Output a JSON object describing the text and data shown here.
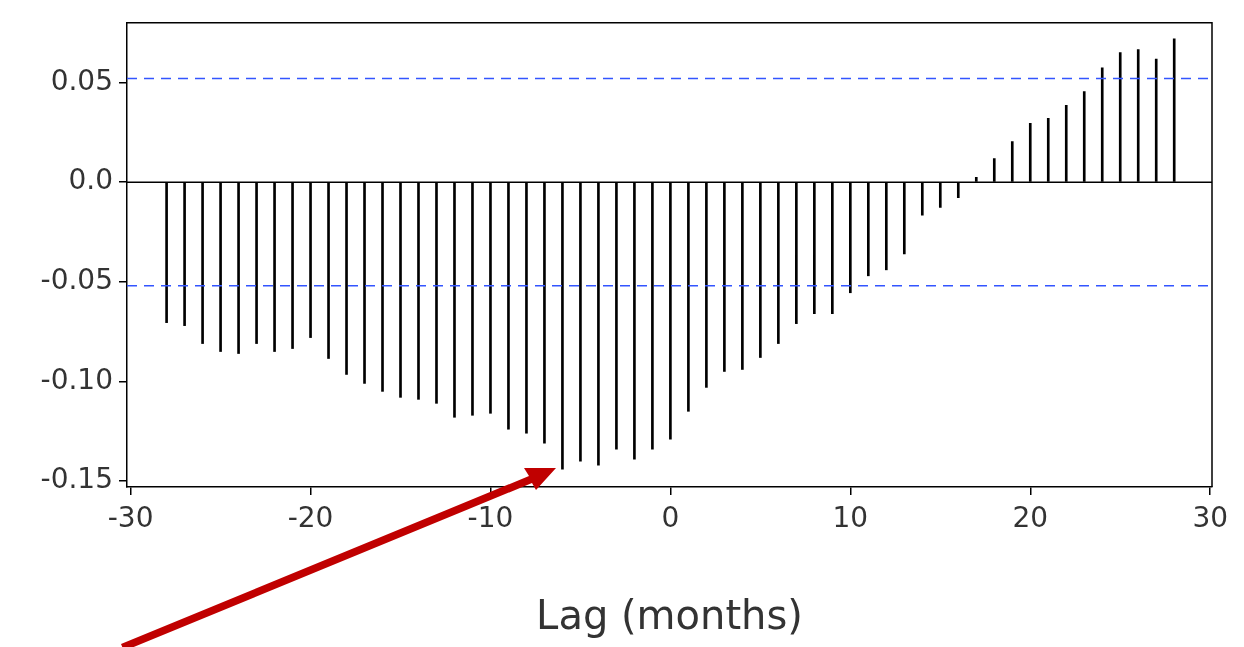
{
  "chart_data": {
    "type": "bar",
    "xlabel": "Lag (months)",
    "x": [
      -28,
      -27,
      -26,
      -25,
      -24,
      -23,
      -22,
      -21,
      -20,
      -19,
      -18,
      -17,
      -16,
      -15,
      -14,
      -13,
      -12,
      -11,
      -10,
      -9,
      -8,
      -7,
      -6,
      -5,
      -4,
      -3,
      -2,
      -1,
      0,
      1,
      2,
      3,
      4,
      5,
      6,
      7,
      8,
      9,
      10,
      11,
      12,
      13,
      14,
      15,
      16,
      17,
      18,
      19,
      20,
      21,
      22,
      23,
      24,
      25,
      26,
      27,
      28
    ],
    "values": [
      -0.0705,
      -0.072,
      -0.081,
      -0.085,
      -0.086,
      -0.081,
      -0.085,
      -0.0835,
      -0.078,
      -0.0885,
      -0.0965,
      -0.101,
      -0.105,
      -0.108,
      -0.109,
      -0.111,
      -0.118,
      -0.117,
      -0.116,
      -0.124,
      -0.126,
      -0.131,
      -0.144,
      -0.14,
      -0.142,
      -0.134,
      -0.139,
      -0.134,
      -0.129,
      -0.115,
      -0.103,
      -0.095,
      -0.094,
      -0.088,
      -0.081,
      -0.071,
      -0.066,
      -0.066,
      -0.0555,
      -0.047,
      -0.044,
      -0.036,
      -0.0165,
      -0.0127,
      -0.0078,
      0.0024,
      0.0118,
      0.0204,
      0.0295,
      0.0321,
      0.0386,
      0.0455,
      0.0574,
      0.065,
      0.0666,
      0.0618,
      0.072
    ],
    "color": "#000000",
    "xlim": [
      -30.2,
      30.1
    ],
    "xticks": [
      -30,
      -20,
      -10,
      0,
      10,
      20,
      30
    ],
    "ylim": [
      -0.153,
      0.08
    ],
    "yticks": [
      -0.15,
      {
        "value": -0.1,
        "label": "-0.10"
      },
      -0.05,
      {
        "value": 0,
        "label": "0.0"
      },
      0.05
    ],
    "ref_lines": [
      {
        "axis": "y",
        "value": 0.052,
        "color": "#3355ff",
        "line_style": "dashed"
      },
      {
        "axis": "y",
        "value": -0.052,
        "color": "#3355ff",
        "line_style": "dashed"
      },
      {
        "axis": "y",
        "value": 0,
        "color": "#000000",
        "line_style": "solid"
      }
    ]
  }
}
